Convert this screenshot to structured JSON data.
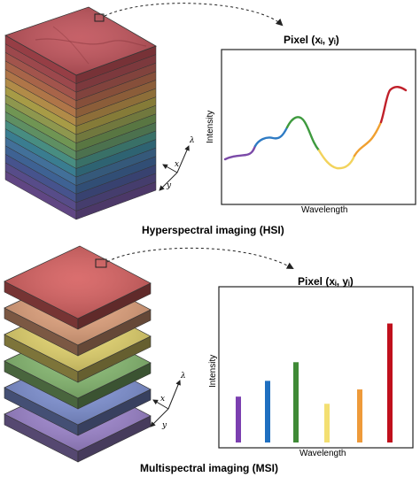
{
  "hsi": {
    "caption": "Hyperspectral imaging (HSI)",
    "pixel_title": "Pixel (xᵢ, yᵢ)",
    "xlabel": "Wavelength",
    "ylabel": "Intensity",
    "axes_glyphs": {
      "lambda": "λ",
      "x": "x",
      "y": "y"
    },
    "layer_colors": [
      "#7b5aa8",
      "#6f62b0",
      "#5a6bb5",
      "#4f7dbd",
      "#5590c4",
      "#4aa0b8",
      "#5cb5a6",
      "#7ab77e",
      "#8fbf6a",
      "#b6c264",
      "#d6c75a",
      "#e3b25c",
      "#e0965c",
      "#d8805e",
      "#d06c62",
      "#c85c62",
      "#c05058"
    ],
    "spectrum_colors": [
      "#7b4aa8",
      "#2e7bc4",
      "#3e9a3e",
      "#f2d35c",
      "#f0a030",
      "#c0202a"
    ]
  },
  "msi": {
    "caption": "Multispectral imaging (MSI)",
    "pixel_title": "Pixel (xᵢ, yᵢ)",
    "xlabel": "Wavelength",
    "ylabel": "Intensity",
    "axes_glyphs": {
      "lambda": "λ",
      "x": "x",
      "y": "y"
    },
    "layer_colors": [
      "#9b82cc",
      "#7c8fd2",
      "#84b86e",
      "#e3d36a",
      "#e0a07a",
      "#d65e5e"
    ],
    "bar_colors": [
      "#7b3fb0",
      "#1f6fc0",
      "#3f8a36",
      "#f3df72",
      "#ee9a3a",
      "#c0101c"
    ],
    "bar_values": [
      0.32,
      0.43,
      0.56,
      0.27,
      0.37,
      0.83
    ]
  }
}
